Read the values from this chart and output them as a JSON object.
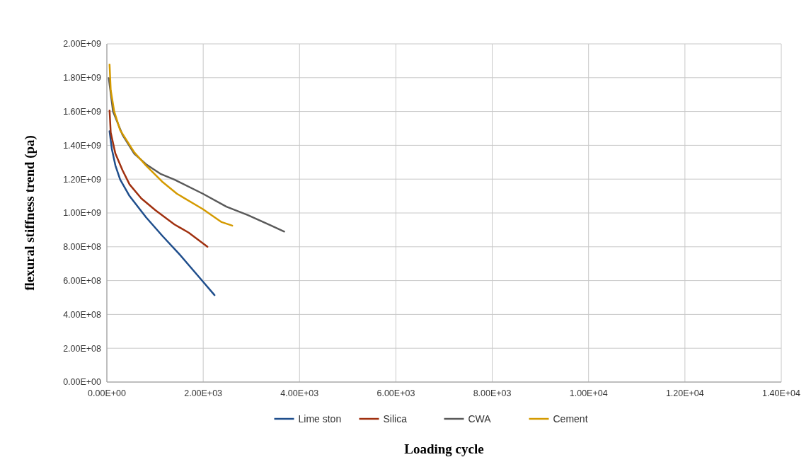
{
  "chart_data": {
    "type": "line",
    "xlabel": "Loading cycle",
    "ylabel": "flexural stiffness trend (pa)",
    "xlim": [
      0,
      14000
    ],
    "ylim": [
      0,
      2000000000
    ],
    "xticks": [
      {
        "value": 0,
        "label": "0.00E+00"
      },
      {
        "value": 2000,
        "label": "2.00E+03"
      },
      {
        "value": 4000,
        "label": "4.00E+03"
      },
      {
        "value": 6000,
        "label": "6.00E+03"
      },
      {
        "value": 8000,
        "label": "8.00E+03"
      },
      {
        "value": 10000,
        "label": "1.00E+04"
      },
      {
        "value": 12000,
        "label": "1.20E+04"
      },
      {
        "value": 14000,
        "label": "1.40E+04"
      }
    ],
    "yticks": [
      {
        "value": 0,
        "label": "0.00E+00"
      },
      {
        "value": 200000000,
        "label": "2.00E+08"
      },
      {
        "value": 400000000,
        "label": "4.00E+08"
      },
      {
        "value": 600000000,
        "label": "6.00E+08"
      },
      {
        "value": 800000000,
        "label": "8.00E+08"
      },
      {
        "value": 1000000000,
        "label": "1.00E+09"
      },
      {
        "value": 1200000000,
        "label": "1.20E+09"
      },
      {
        "value": 1400000000,
        "label": "1.40E+09"
      },
      {
        "value": 1600000000,
        "label": "1.60E+09"
      },
      {
        "value": 1800000000,
        "label": "1.80E+09"
      },
      {
        "value": 2000000000,
        "label": "2.00E+09"
      }
    ],
    "grid": true,
    "legend": "bottom",
    "marker": "none",
    "line_style": "solid",
    "series": [
      {
        "name": "Lime ston",
        "color": "#1f4e8c",
        "x": [
          56,
          103,
          177,
          275,
          471,
          815,
          1157,
          1500,
          1941,
          2235
        ],
        "values": [
          1483000000,
          1379000000,
          1281000000,
          1198000000,
          1100000000,
          974000000,
          863000000,
          758000000,
          612000000,
          514000000
        ]
      },
      {
        "name": "Silica",
        "color": "#a0300f",
        "x": [
          56,
          80,
          177,
          324,
          471,
          716,
          1010,
          1403,
          1697,
          2088
        ],
        "values": [
          1606000000,
          1476000000,
          1351000000,
          1253000000,
          1169000000,
          1086000000,
          1016000000,
          932000000,
          884000000,
          800000000
        ]
      },
      {
        "name": "CWA",
        "color": "#5a5a5a",
        "x": [
          40,
          128,
          324,
          570,
          815,
          1109,
          1403,
          1991,
          2482,
          2922,
          3412,
          3682
        ],
        "values": [
          1797000000,
          1600000000,
          1462000000,
          1350000000,
          1288000000,
          1232000000,
          1197000000,
          1114000000,
          1037000000,
          988000000,
          925000000,
          890000000
        ]
      },
      {
        "name": "Cement",
        "color": "#d49a00",
        "x": [
          56,
          80,
          153,
          275,
          570,
          815,
          1157,
          1453,
          1991,
          2382,
          2603
        ],
        "values": [
          1878000000,
          1727000000,
          1600000000,
          1490000000,
          1358000000,
          1280000000,
          1183000000,
          1114000000,
          1023000000,
          946000000,
          925000000
        ]
      }
    ]
  }
}
